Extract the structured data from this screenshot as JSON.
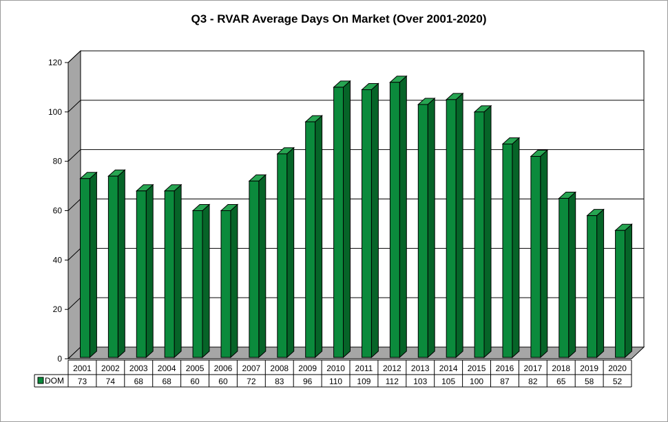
{
  "chart_data": {
    "type": "bar",
    "title": "Q3 - RVAR Average Days On Market (Over 2001-2020)",
    "categories": [
      "2001",
      "2002",
      "2003",
      "2004",
      "2005",
      "2006",
      "2007",
      "2008",
      "2009",
      "2010",
      "2011",
      "2012",
      "2013",
      "2014",
      "2015",
      "2016",
      "2017",
      "2018",
      "2019",
      "2020"
    ],
    "series": [
      {
        "name": "DOM",
        "values": [
          73,
          74,
          68,
          68,
          60,
          60,
          72,
          83,
          96,
          110,
          109,
          112,
          103,
          105,
          100,
          87,
          82,
          65,
          58,
          52
        ]
      }
    ],
    "yticks": [
      "0",
      "20",
      "40",
      "60",
      "80",
      "100",
      "120"
    ],
    "ylim": [
      0,
      120
    ],
    "grid": true,
    "data_table": true,
    "colors": {
      "bar_front": "#0b8a3c",
      "bar_side": "#066428",
      "bar_top": "#27a552",
      "floor": "#a6a6a6",
      "wall": "#ffffff"
    }
  }
}
